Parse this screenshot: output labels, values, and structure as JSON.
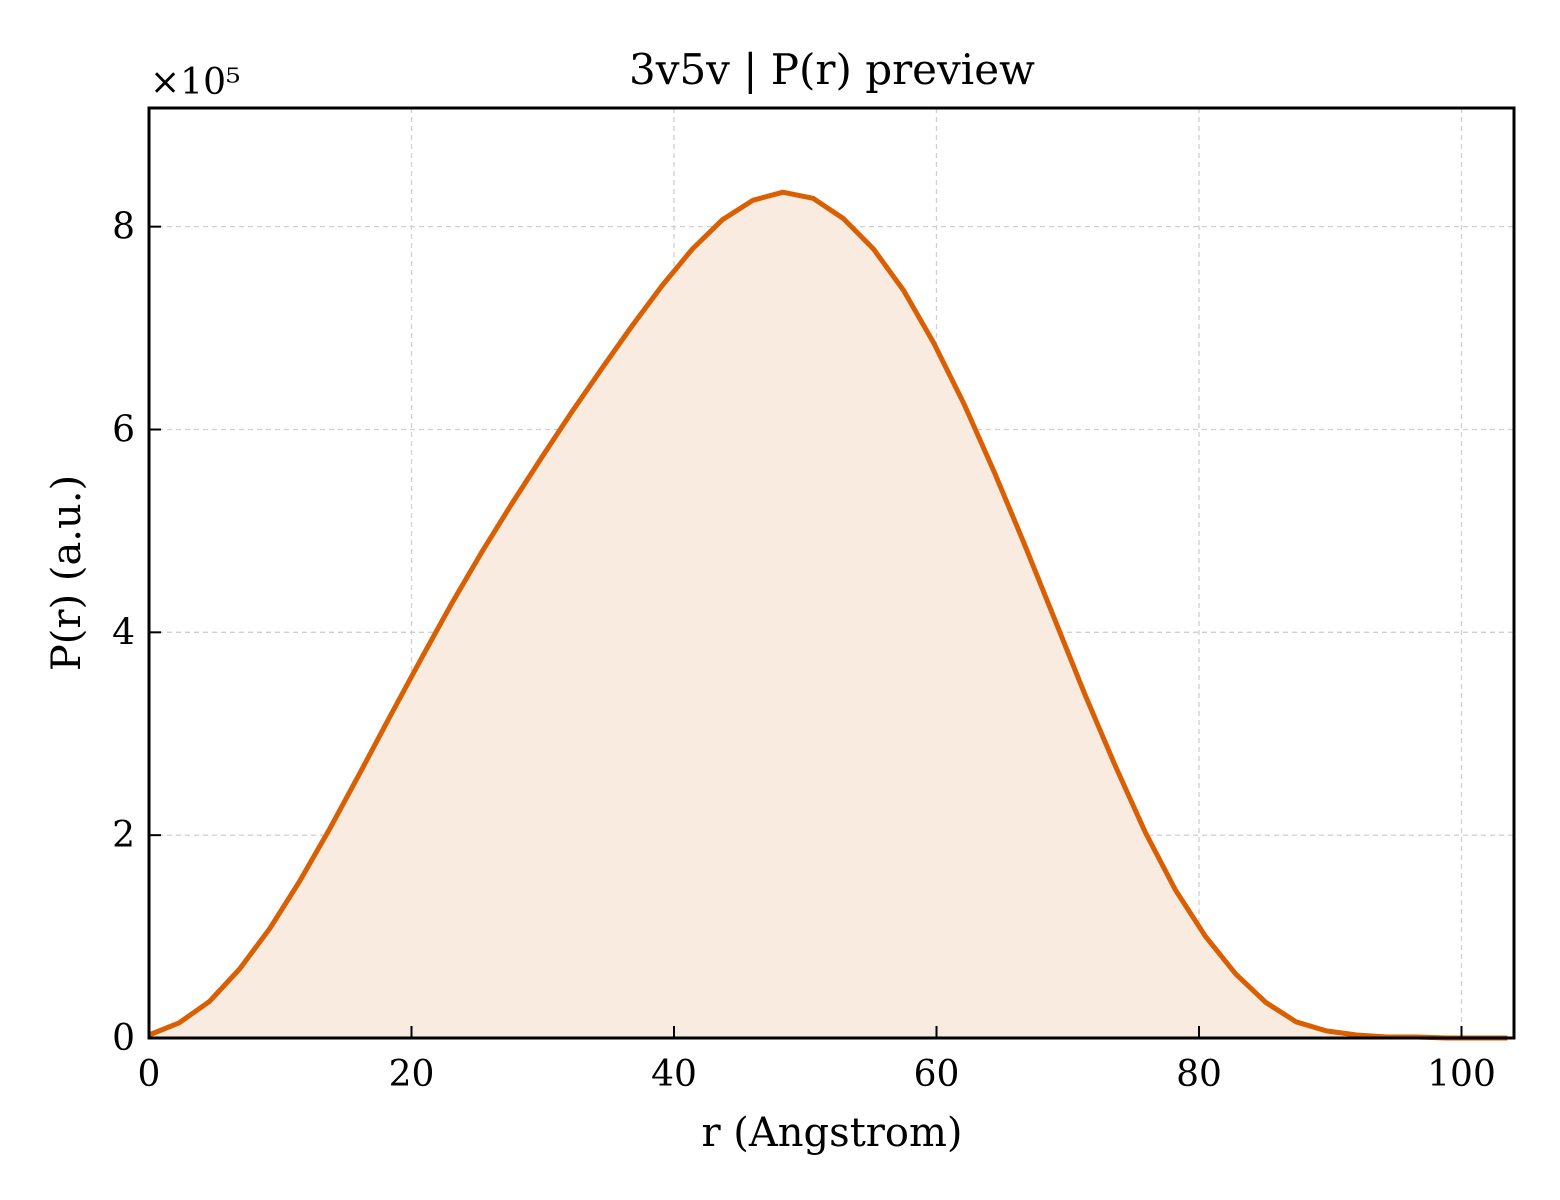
{
  "chart_data": {
    "type": "area",
    "title": "3v5v | P(r) preview",
    "xlabel": "r (Angstrom)",
    "ylabel": "P(r) (a.u.)",
    "y_multiplier_label": "×10⁵",
    "y_scale_factor": 100000,
    "xlim": [
      0,
      104
    ],
    "ylim": [
      0,
      9.17
    ],
    "xticks": [
      0,
      20,
      40,
      60,
      80,
      100
    ],
    "xtick_labels": [
      "0",
      "20",
      "40",
      "60",
      "80",
      "100"
    ],
    "yticks": [
      0,
      2,
      4,
      6,
      8
    ],
    "ytick_labels": [
      "0",
      "2",
      "4",
      "6",
      "8"
    ],
    "grid": true,
    "legend": "none",
    "line_color": "#d95f02",
    "fill_color": "#f9ebe0",
    "series": [
      {
        "x": [
          0,
          2.3,
          4.6,
          6.9,
          9.2,
          11.5,
          13.8,
          16.1,
          18.4,
          20.7,
          23.0,
          25.3,
          27.6,
          29.9,
          32.2,
          34.5,
          36.8,
          39.1,
          41.4,
          43.7,
          46.0,
          48.3,
          50.6,
          52.9,
          55.2,
          57.5,
          59.8,
          62.1,
          64.4,
          66.7,
          69.0,
          71.3,
          73.6,
          75.9,
          78.2,
          80.5,
          82.8,
          85.1,
          87.4,
          89.7,
          92.0,
          94.3,
          96.6,
          98.9,
          101.2,
          103.5
        ],
        "y": [
          0.03,
          0.15,
          0.36,
          0.68,
          1.08,
          1.55,
          2.07,
          2.62,
          3.18,
          3.73,
          4.27,
          4.78,
          5.26,
          5.72,
          6.17,
          6.6,
          7.02,
          7.42,
          7.78,
          8.07,
          8.26,
          8.34,
          8.28,
          8.08,
          7.78,
          7.37,
          6.85,
          6.25,
          5.58,
          4.87,
          4.13,
          3.39,
          2.69,
          2.03,
          1.46,
          1.0,
          0.63,
          0.35,
          0.16,
          0.07,
          0.03,
          0.01,
          0.01,
          0.0,
          0.0,
          0.0
        ]
      }
    ]
  }
}
